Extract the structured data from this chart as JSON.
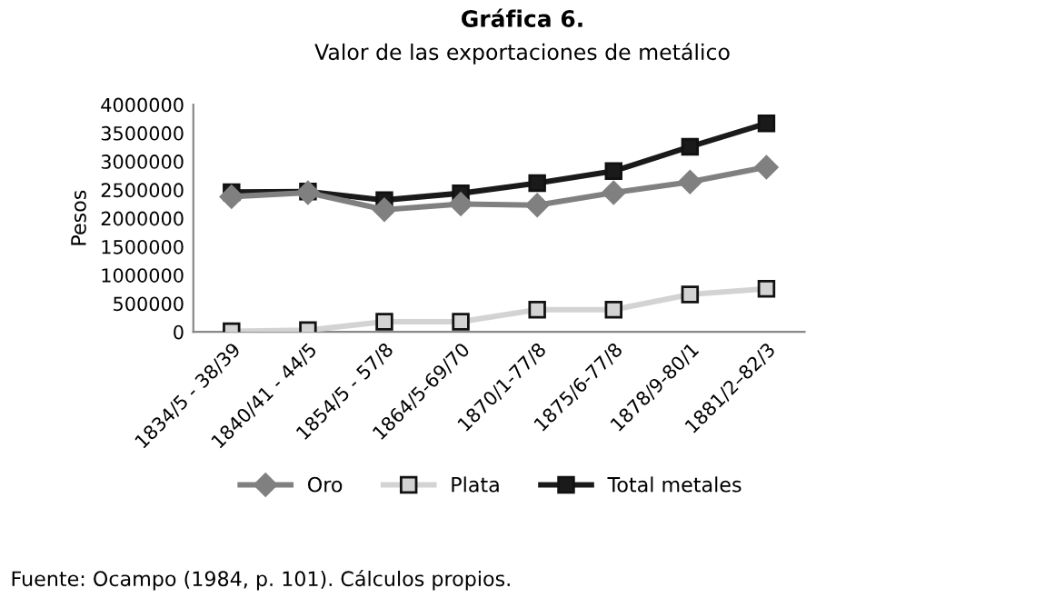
{
  "chart_data": {
    "type": "line",
    "title": "Gráfica 6.",
    "subtitle": "Valor de las exportaciones de metálico",
    "ylabel": "Pesos",
    "categories": [
      "1834/5 - 38/39",
      "1840/41 - 44/5",
      "1854/5 - 57/8",
      "1864/5-69/70",
      "1870/1-77/8",
      "1875/6-77/8",
      "1878/9-80/1",
      "1881/2–82/3"
    ],
    "series": [
      {
        "name": "Oro",
        "color": "#808080",
        "marker": "diamond",
        "values": [
          2380000,
          2450000,
          2150000,
          2250000,
          2230000,
          2450000,
          2640000,
          2900000
        ]
      },
      {
        "name": "Plata",
        "color": "#d3d3d3",
        "marker": "square",
        "values": [
          10000,
          30000,
          180000,
          180000,
          390000,
          390000,
          660000,
          760000
        ]
      },
      {
        "name": "Total metales",
        "color": "#1a1a1a",
        "marker": "square",
        "values": [
          2460000,
          2470000,
          2320000,
          2440000,
          2620000,
          2830000,
          3260000,
          3670000
        ]
      }
    ],
    "ylim": [
      0,
      4000000
    ],
    "yticks": [
      0,
      500000,
      1000000,
      1500000,
      2000000,
      2500000,
      3000000,
      3500000,
      4000000
    ],
    "grid": false,
    "legend": "bottom",
    "annotations": [
      "Fuente: Ocampo (1984, p. 101). Cálculos propios."
    ]
  }
}
